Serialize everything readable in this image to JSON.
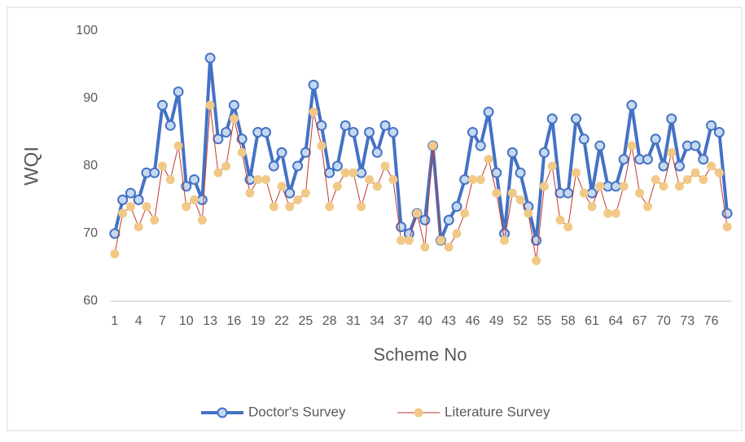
{
  "chart_data": {
    "type": "line",
    "y_label": "WQI",
    "x_label": "Scheme No",
    "categories": [
      "1",
      null,
      null,
      "4",
      null,
      null,
      "7",
      null,
      null,
      "10",
      null,
      null,
      "13",
      null,
      null,
      "16",
      null,
      null,
      "19",
      null,
      null,
      "22",
      null,
      null,
      "25",
      null,
      null,
      "28",
      null,
      null,
      "31",
      null,
      null,
      "34",
      null,
      null,
      "37",
      null,
      null,
      "40",
      null,
      null,
      "43",
      null,
      null,
      "46",
      null,
      null,
      "49",
      null,
      null,
      "52",
      null,
      null,
      "55",
      null,
      null,
      "58",
      null,
      null,
      "61",
      null,
      null,
      "64",
      null,
      null,
      "67",
      null,
      null,
      "70",
      null,
      null,
      "73",
      null,
      null,
      "76",
      null,
      null
    ],
    "ylim": [
      60,
      100
    ],
    "yticks": [
      60,
      70,
      80,
      90,
      100
    ],
    "grid": false,
    "legend": "bottom",
    "series": [
      {
        "name": "Doctor's Survey",
        "color": "#4472c4",
        "marker_fill": "#c5d9f1",
        "line_width": 4,
        "values": [
          70,
          75,
          76,
          75,
          79,
          79,
          89,
          86,
          91,
          77,
          78,
          75,
          96,
          84,
          85,
          89,
          84,
          78,
          85,
          85,
          80,
          82,
          76,
          80,
          82,
          92,
          86,
          79,
          80,
          86,
          85,
          79,
          85,
          82,
          86,
          85,
          71,
          70,
          73,
          72,
          83,
          69,
          72,
          74,
          78,
          85,
          83,
          88,
          79,
          70,
          82,
          79,
          74,
          69,
          82,
          87,
          76,
          76,
          87,
          84,
          76,
          83,
          77,
          77,
          81,
          89,
          81,
          81,
          84,
          80,
          87,
          80,
          83,
          83,
          81,
          86,
          85,
          73
        ]
      },
      {
        "name": "Literature Survey",
        "color": "#c0392b",
        "marker_fill": "#f1c987",
        "line_width": 1,
        "values": [
          67,
          73,
          74,
          71,
          74,
          72,
          80,
          78,
          83,
          74,
          75,
          72,
          89,
          79,
          80,
          87,
          82,
          76,
          78,
          78,
          74,
          77,
          74,
          75,
          76,
          88,
          83,
          74,
          77,
          79,
          79,
          74,
          78,
          77,
          80,
          78,
          69,
          69,
          73,
          68,
          83,
          69,
          68,
          70,
          73,
          78,
          78,
          81,
          76,
          69,
          76,
          75,
          73,
          66,
          77,
          80,
          72,
          71,
          79,
          76,
          74,
          77,
          73,
          73,
          77,
          83,
          76,
          74,
          78,
          77,
          82,
          77,
          78,
          79,
          78,
          80,
          79,
          71
        ]
      }
    ]
  }
}
